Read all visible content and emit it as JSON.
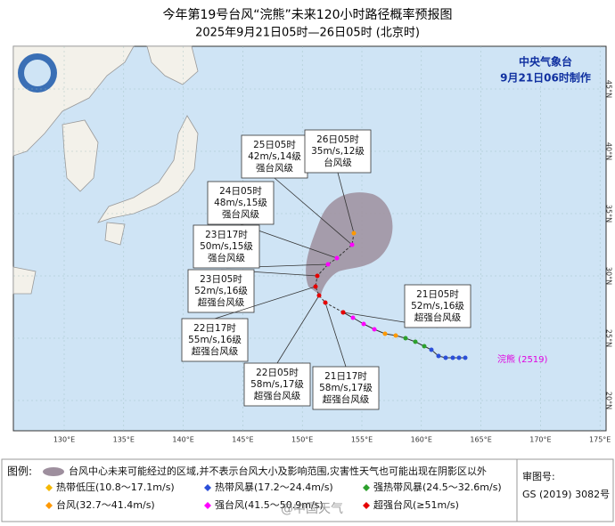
{
  "header": {
    "title": "今年第19号台风“浣熊”未来120小时路径概率预报图",
    "subtitle": "2025年9月21日05时—26日05时 (北京时)"
  },
  "agency": {
    "name": "中央气象台",
    "issued": "9月21日06时制作"
  },
  "axes": {
    "lon": [
      "130°E",
      "135°E",
      "140°E",
      "145°E",
      "150°E",
      "155°E",
      "160°E",
      "165°E",
      "170°E",
      "175°E"
    ],
    "lat": [
      "45°N",
      "40°N",
      "35°N",
      "30°N",
      "25°N",
      "20°N"
    ]
  },
  "forecast_points": [
    {
      "time": "25日05时",
      "wind": "42m/s,14级",
      "level": "强台风级"
    },
    {
      "time": "26日05时",
      "wind": "35m/s,12级",
      "level": "台风级"
    },
    {
      "time": "24日05时",
      "wind": "48m/s,15级",
      "level": "强台风级"
    },
    {
      "time": "23日17时",
      "wind": "50m/s,15级",
      "level": "强台风级"
    },
    {
      "time": "23日05时",
      "wind": "52m/s,16级",
      "level": "超强台风级"
    },
    {
      "time": "22日17时",
      "wind": "55m/s,16级",
      "level": "超强台风级"
    },
    {
      "time": "22日05时",
      "wind": "58m/s,17级",
      "level": "超强台风级"
    },
    {
      "time": "21日17时",
      "wind": "58m/s,17级",
      "level": "超强台风级"
    },
    {
      "time": "21日05时",
      "wind": "52m/s,16级",
      "level": "超强台风级"
    }
  ],
  "storm_label": "浣熊 (2519)",
  "legend": {
    "heading": "图例:",
    "cone": "台风中心未来可能经过的区域,并不表示台风大小及影响范围,灾害性天气也可能出现在阴影区以外",
    "categories": [
      "热带低压(10.8～17.1m/s)",
      "热带风暴(17.2～24.4m/s)",
      "强热带风暴(24.5～32.6m/s)",
      "台风(32.7～41.4m/s)",
      "强台风(41.5～50.9m/s)",
      "超强台风(≥51m/s)"
    ]
  },
  "approval": {
    "label": "审图号:",
    "number": "GS (2019) 3082号"
  },
  "watermark": "@中国天气"
}
